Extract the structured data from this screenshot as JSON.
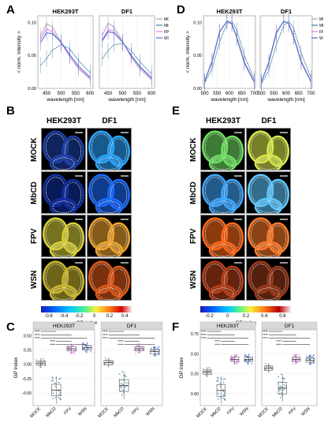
{
  "panels": {
    "A": {
      "label": "A",
      "facets": [
        "HEK293T",
        "DF1"
      ],
      "ylabel": "< norm. intensity >",
      "xlabel": "wavelength [nm]",
      "xticks": [
        "450",
        "500",
        "550",
        "600"
      ],
      "yticks": [
        "0.00",
        "0.05",
        "0.10"
      ],
      "legend": [
        "MOCK",
        "MbCD",
        "FPV",
        "WSN"
      ]
    },
    "D": {
      "label": "D",
      "facets": [
        "HEK293T",
        "DF1"
      ],
      "ylabel": "< norm. intensity >",
      "xlabel": "wavelength [nm]",
      "xticks": [
        "500",
        "550",
        "600",
        "650",
        "700"
      ],
      "yticks": [
        "0.00",
        "0.05",
        "0.10"
      ],
      "legend": [
        "MOCK",
        "MbCD",
        "FPV",
        "WSN"
      ]
    },
    "B": {
      "label": "B",
      "cols": [
        "HEK293T",
        "DF1"
      ],
      "rows": [
        "MOCK",
        "MbCD",
        "FPV",
        "WSN"
      ],
      "cbar_ticks": [
        "-0.6",
        "-0.4",
        "-0.2",
        "0",
        "0.2",
        "0.4"
      ],
      "cbar_title": "GP index"
    },
    "E": {
      "label": "E",
      "cols": [
        "HEK293T",
        "DF1"
      ],
      "rows": [
        "MOCK",
        "MbCD",
        "FPV",
        "WSN"
      ],
      "cbar_ticks": [
        "-0.2",
        "0",
        "0.2",
        "0.4",
        "0.6"
      ],
      "cbar_title": "GP index"
    },
    "C": {
      "label": "C",
      "facets": [
        "HEK293T",
        "DF1"
      ],
      "ylabel": "GP index",
      "groups": [
        "MOCK",
        "MbCD",
        "FPV",
        "WSN"
      ],
      "yticks": [
        "0.50",
        "0.25",
        "0.00",
        "-0.25",
        "-0.50"
      ],
      "sig": "****"
    },
    "F": {
      "label": "F",
      "facets": [
        "HEK293T",
        "DF1"
      ],
      "ylabel": "GP index",
      "groups": [
        "MOCK",
        "MbCD",
        "FPV",
        "WSN"
      ],
      "yticks": [
        "0.75",
        "0.50",
        "0.25",
        "0.00"
      ],
      "sig": "****"
    }
  },
  "colors": {
    "MOCK": "#a7a7a7",
    "MbCD": "#3a7f9c",
    "FPV": "#e377e8",
    "WSN": "#3f6fd0"
  },
  "chart_data": [
    {
      "type": "line",
      "panel": "A",
      "facet": "HEK293T",
      "x": [
        430,
        450,
        470,
        500,
        530,
        560,
        600
      ],
      "ylim": [
        0,
        0.11
      ],
      "series": [
        {
          "name": "MOCK",
          "values": [
            0.08,
            0.098,
            0.093,
            0.07,
            0.048,
            0.03,
            0.014
          ]
        },
        {
          "name": "MbCD",
          "values": [
            0.035,
            0.045,
            0.058,
            0.066,
            0.06,
            0.042,
            0.024
          ]
        },
        {
          "name": "FPV",
          "values": [
            0.075,
            0.09,
            0.086,
            0.069,
            0.048,
            0.031,
            0.015
          ]
        },
        {
          "name": "WSN",
          "values": [
            0.07,
            0.084,
            0.083,
            0.07,
            0.051,
            0.034,
            0.017
          ]
        }
      ]
    },
    {
      "type": "line",
      "panel": "A",
      "facet": "DF1",
      "x": [
        430,
        450,
        470,
        500,
        530,
        560,
        600
      ],
      "ylim": [
        0,
        0.11
      ],
      "series": [
        {
          "name": "MOCK",
          "values": [
            0.08,
            0.099,
            0.093,
            0.071,
            0.047,
            0.029,
            0.013
          ]
        },
        {
          "name": "MbCD",
          "values": [
            0.045,
            0.057,
            0.066,
            0.068,
            0.057,
            0.04,
            0.022
          ]
        },
        {
          "name": "FPV",
          "values": [
            0.074,
            0.089,
            0.087,
            0.07,
            0.049,
            0.032,
            0.015
          ]
        },
        {
          "name": "WSN",
          "values": [
            0.072,
            0.086,
            0.084,
            0.07,
            0.05,
            0.033,
            0.016
          ]
        }
      ]
    },
    {
      "type": "line",
      "panel": "D",
      "facet": "HEK293T",
      "x": [
        500,
        530,
        560,
        590,
        610,
        630,
        660,
        700
      ],
      "ylim": [
        0,
        0.11
      ],
      "series": [
        {
          "name": "MOCK",
          "values": [
            0.01,
            0.04,
            0.085,
            0.102,
            0.098,
            0.078,
            0.04,
            0.01
          ]
        },
        {
          "name": "MbCD",
          "values": [
            0.008,
            0.03,
            0.07,
            0.098,
            0.102,
            0.088,
            0.05,
            0.014
          ]
        },
        {
          "name": "FPV",
          "values": [
            0.011,
            0.042,
            0.086,
            0.102,
            0.097,
            0.076,
            0.038,
            0.009
          ]
        },
        {
          "name": "WSN",
          "values": [
            0.011,
            0.041,
            0.085,
            0.102,
            0.098,
            0.077,
            0.039,
            0.01
          ]
        }
      ]
    },
    {
      "type": "line",
      "panel": "D",
      "facet": "DF1",
      "x": [
        500,
        530,
        560,
        590,
        610,
        630,
        660,
        700
      ],
      "ylim": [
        0,
        0.11
      ],
      "series": [
        {
          "name": "MOCK",
          "values": [
            0.01,
            0.038,
            0.083,
            0.102,
            0.099,
            0.08,
            0.042,
            0.011
          ]
        },
        {
          "name": "MbCD",
          "values": [
            0.007,
            0.028,
            0.066,
            0.095,
            0.102,
            0.091,
            0.054,
            0.016
          ]
        },
        {
          "name": "FPV",
          "values": [
            0.01,
            0.04,
            0.085,
            0.102,
            0.098,
            0.078,
            0.04,
            0.01
          ]
        },
        {
          "name": "WSN",
          "values": [
            0.01,
            0.04,
            0.084,
            0.102,
            0.098,
            0.078,
            0.04,
            0.01
          ]
        }
      ]
    },
    {
      "type": "box",
      "panel": "C",
      "facet": "HEK293T",
      "categories": [
        "MOCK",
        "MbCD",
        "FPV",
        "WSN"
      ],
      "ylim": [
        -0.72,
        0.6
      ],
      "series": [
        {
          "values": [
            0.02,
            -0.45,
            0.27,
            0.29
          ]
        }
      ]
    },
    {
      "type": "box",
      "panel": "C",
      "facet": "DF1",
      "categories": [
        "MOCK",
        "MbCD",
        "FPV",
        "WSN"
      ],
      "ylim": [
        -0.72,
        0.6
      ],
      "series": [
        {
          "values": [
            0.03,
            -0.37,
            0.27,
            0.22
          ]
        }
      ]
    },
    {
      "type": "box",
      "panel": "F",
      "facet": "HEK293T",
      "categories": [
        "MOCK",
        "MbCD",
        "FPV",
        "WSN"
      ],
      "ylim": [
        -0.15,
        0.8
      ],
      "series": [
        {
          "values": [
            0.27,
            0.04,
            0.43,
            0.43
          ]
        }
      ]
    },
    {
      "type": "box",
      "panel": "F",
      "facet": "DF1",
      "categories": [
        "MOCK",
        "MbCD",
        "FPV",
        "WSN"
      ],
      "ylim": [
        -0.15,
        0.8
      ],
      "series": [
        {
          "values": [
            0.32,
            0.07,
            0.43,
            0.42
          ]
        }
      ]
    }
  ]
}
